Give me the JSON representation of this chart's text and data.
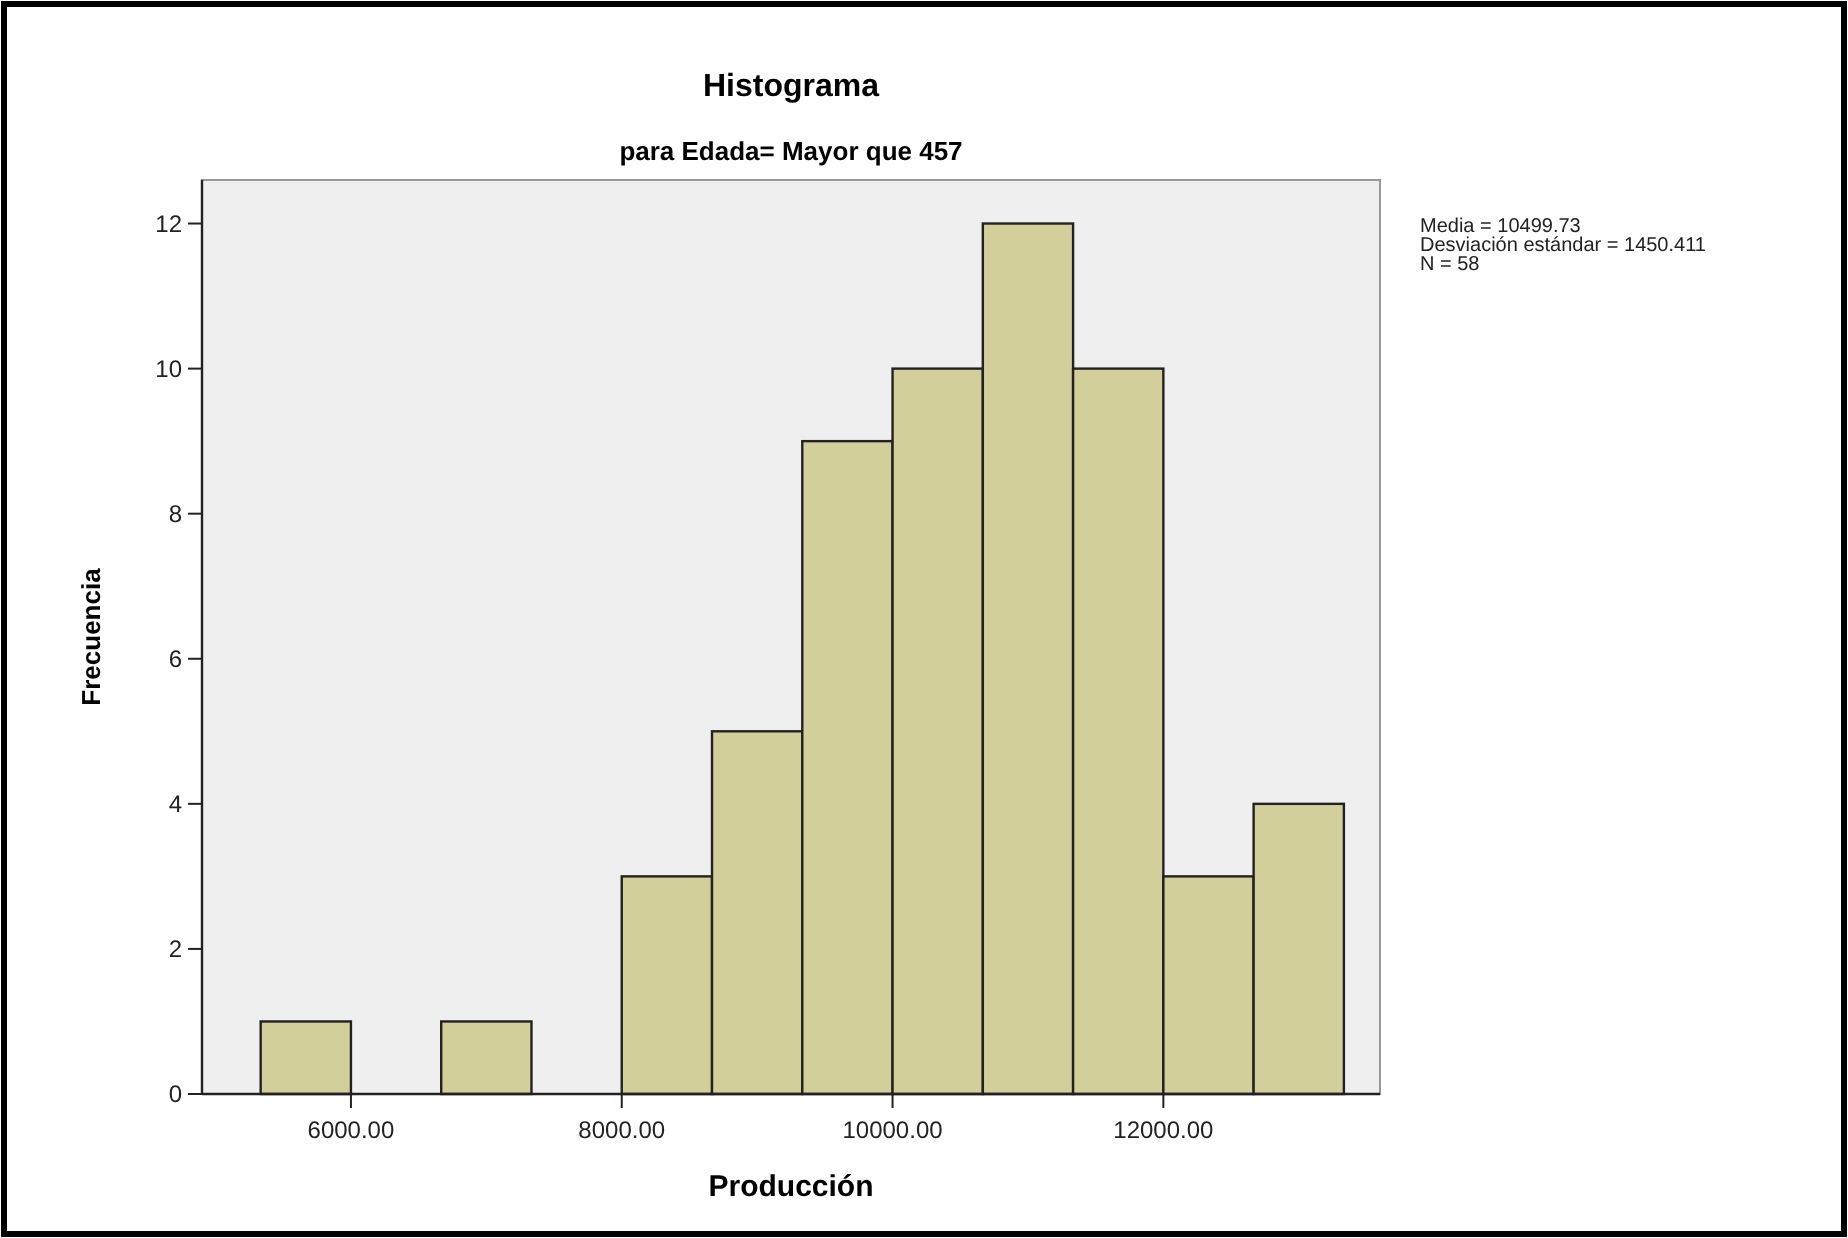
{
  "chart_data": {
    "type": "histogram",
    "title": "Histograma",
    "subtitle": "para Edada= Mayor que 457",
    "xlabel": "Producción",
    "ylabel": "Frecuencia",
    "bins": [
      5333.33,
      6000,
      6666.67,
      7333.33,
      8000,
      8666.67,
      9333.33,
      10000,
      10666.67,
      11333.33,
      12000,
      12666.67,
      13333.33
    ],
    "values": [
      1,
      0,
      1,
      0,
      3,
      5,
      9,
      10,
      12,
      10,
      3,
      4
    ],
    "color": "#d3cf9a",
    "xlim": [
      4900,
      13600
    ],
    "xticks": [
      {
        "value": 6000,
        "label": "6000.00"
      },
      {
        "value": 8000,
        "label": "8000.00"
      },
      {
        "value": 10000,
        "label": "10000.00"
      },
      {
        "value": 12000,
        "label": "12000.00"
      }
    ],
    "ylim": [
      0,
      12.6
    ],
    "yticks": [
      0,
      2,
      4,
      6,
      8,
      10,
      12
    ],
    "annotations": [
      "Media = 10499.73",
      "Desviación estándar = 1450.411",
      "N = 58"
    ]
  }
}
